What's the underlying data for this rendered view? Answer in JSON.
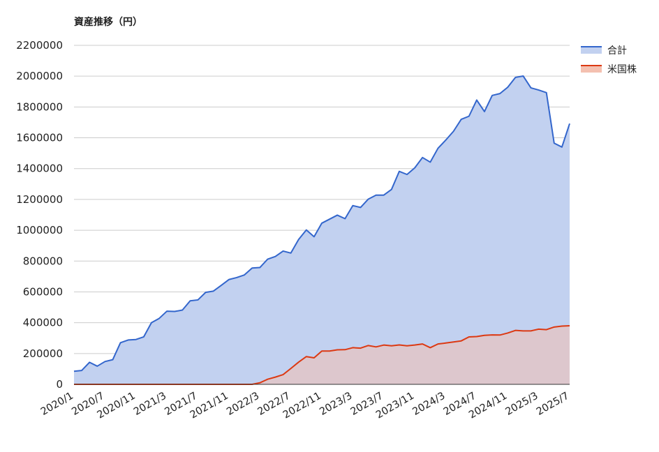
{
  "chart_data": {
    "type": "area",
    "title": "資産推移（円）",
    "xlabel": "",
    "ylabel": "",
    "ylim": [
      0,
      2200000
    ],
    "y_ticks": [
      "0",
      "200000",
      "400000",
      "600000",
      "800000",
      "1000000",
      "1200000",
      "1400000",
      "1600000",
      "1800000",
      "2000000",
      "2200000"
    ],
    "x_ticks": [
      "2020/1",
      "2020/7",
      "2020/11",
      "2021/3",
      "2021/7",
      "2021/11",
      "2022/3",
      "2022/7",
      "2022/11",
      "2023/3",
      "2023/7",
      "2023/11",
      "2024/3",
      "2024/7",
      "2024/11",
      "2025/3",
      "2025/7"
    ],
    "grid": true,
    "legend_position": "top-right",
    "series": [
      {
        "name": "合計",
        "line_color": "#3366cc",
        "fill_color": "#c2d1f0",
        "values": [
          85000,
          90000,
          143000,
          118000,
          148000,
          160000,
          270000,
          288000,
          291000,
          308000,
          400000,
          428000,
          475000,
          473000,
          482000,
          542000,
          548000,
          597000,
          605000,
          642000,
          680000,
          693000,
          710000,
          755000,
          758000,
          812000,
          830000,
          865000,
          852000,
          940000,
          1002000,
          958000,
          1046000,
          1072000,
          1098000,
          1075000,
          1160000,
          1148000,
          1202000,
          1228000,
          1228000,
          1265000,
          1382000,
          1362000,
          1405000,
          1472000,
          1442000,
          1532000,
          1585000,
          1642000,
          1720000,
          1740000,
          1845000,
          1770000,
          1875000,
          1887000,
          1928000,
          1992000,
          2001000,
          1924000,
          1910000,
          1893000,
          1565000,
          1540000,
          1692000
        ]
      },
      {
        "name": "米国株",
        "line_color": "#dc3912",
        "fill_color": "#f4c0b0",
        "values": [
          0,
          0,
          0,
          0,
          0,
          0,
          0,
          0,
          0,
          0,
          0,
          0,
          0,
          0,
          0,
          0,
          0,
          0,
          0,
          0,
          0,
          0,
          0,
          0,
          10000,
          33000,
          47000,
          63000,
          103000,
          144000,
          180000,
          172000,
          216000,
          216000,
          224000,
          225000,
          238000,
          235000,
          252000,
          243000,
          255000,
          250000,
          256000,
          250000,
          255000,
          262000,
          238000,
          262000,
          268000,
          275000,
          282000,
          308000,
          310000,
          318000,
          321000,
          320000,
          333000,
          350000,
          347000,
          347000,
          358000,
          355000,
          372000,
          378000,
          380000
        ]
      }
    ]
  }
}
